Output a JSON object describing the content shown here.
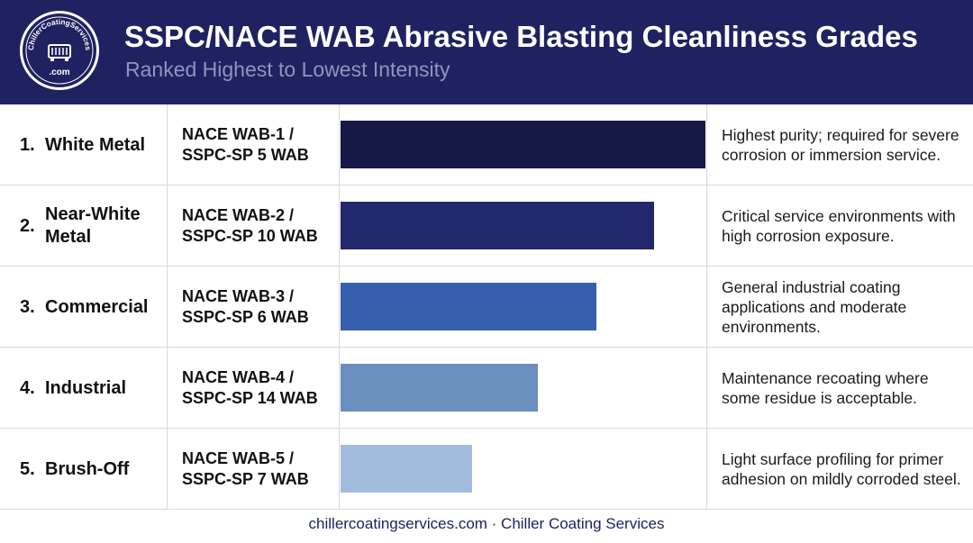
{
  "header": {
    "title": "SSPC/NACE WAB Abrasive Blasting Cleanliness Grades",
    "subtitle": "Ranked Highest to Lowest Intensity",
    "logo": {
      "top_text": "ChillerCoatingServices",
      "bottom_text": ".com"
    }
  },
  "rows": [
    {
      "rank": "1.",
      "grade": "White Metal",
      "standard_line1": "NACE WAB-1 /",
      "standard_line2": "SSPC-SP 5 WAB",
      "description": "Highest purity; required for severe corrosion or immersion service."
    },
    {
      "rank": "2.",
      "grade": "Near-White Metal",
      "standard_line1": "NACE WAB-2 /",
      "standard_line2": "SSPC-SP 10 WAB",
      "description": "Critical service environments with high corrosion exposure."
    },
    {
      "rank": "3.",
      "grade": "Commercial",
      "standard_line1": "NACE WAB-3 /",
      "standard_line2": "SSPC-SP 6 WAB",
      "description": "General industrial coating applications and moderate environments."
    },
    {
      "rank": "4.",
      "grade": "Industrial",
      "standard_line1": "NACE WAB-4 /",
      "standard_line2": "SSPC-SP 14 WAB",
      "description": "Maintenance recoating where some residue is acceptable."
    },
    {
      "rank": "5.",
      "grade": "Brush-Off",
      "standard_line1": "NACE WAB-5 /",
      "standard_line2": "SSPC-SP 7 WAB",
      "description": "Light surface profiling for primer adhesion on mildly corroded steel."
    }
  ],
  "chart_data": {
    "type": "bar",
    "orientation": "horizontal",
    "categories": [
      "White Metal",
      "Near-White Metal",
      "Commercial",
      "Industrial",
      "Brush-Off"
    ],
    "values": [
      100,
      86,
      70,
      54,
      36
    ],
    "xlim": [
      0,
      100
    ],
    "colors": [
      "#161845",
      "#23276b",
      "#3660ad",
      "#6a8fbf",
      "#a3bcdd"
    ],
    "grid": false,
    "legend": "none"
  },
  "footer": {
    "text": "chillercoatingservices.com · Chiller Coating Services"
  },
  "colors": {
    "header_bg": "#1f2260",
    "title": "#ffffff",
    "subtitle": "#8f95bd",
    "footer_text": "#1f2260",
    "divider": "#d9d9d9"
  }
}
